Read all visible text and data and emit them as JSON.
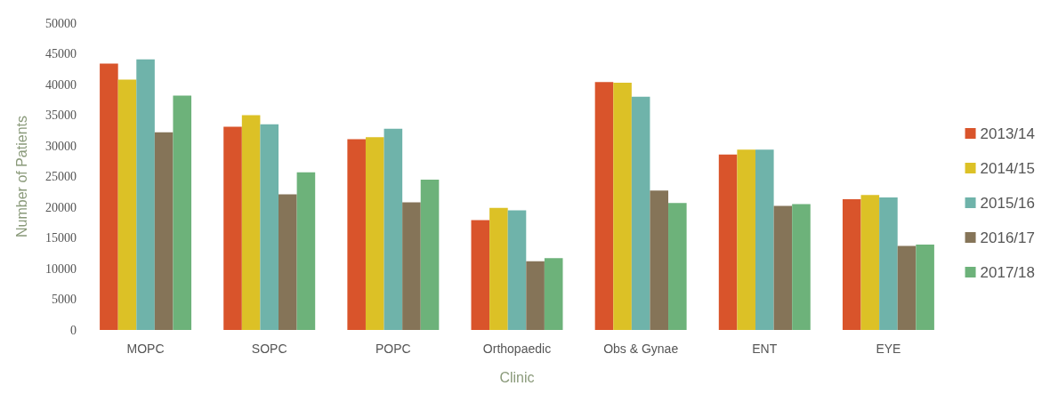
{
  "chart_data": {
    "type": "bar",
    "xlabel": "Clinic",
    "ylabel": "Number of Patients",
    "categories": [
      "MOPC",
      "SOPC",
      "POPC",
      "Orthopaedic",
      "Obs & Gynae",
      "ENT",
      "EYE"
    ],
    "series": [
      {
        "name": "2013/14",
        "color": "#d9542b",
        "values": [
          43400,
          33100,
          31100,
          17900,
          40400,
          28600,
          21300
        ]
      },
      {
        "name": "2014/15",
        "color": "#dcc126",
        "values": [
          40800,
          35000,
          31400,
          19900,
          40300,
          29400,
          22000
        ]
      },
      {
        "name": "2015/16",
        "color": "#6fb3aa",
        "values": [
          44100,
          33500,
          32800,
          19500,
          38000,
          29400,
          21600
        ]
      },
      {
        "name": "2016/17",
        "color": "#857458",
        "values": [
          32200,
          22100,
          20800,
          11200,
          22700,
          20200,
          13700
        ]
      },
      {
        "name": "2017/18",
        "color": "#6db27a",
        "values": [
          38200,
          25700,
          24500,
          11700,
          20700,
          20500,
          13900
        ]
      }
    ],
    "ylim": [
      0,
      50000
    ],
    "yticks": [
      0,
      5000,
      10000,
      15000,
      20000,
      25000,
      30000,
      35000,
      40000,
      45000,
      50000
    ],
    "grid": false,
    "legend": "right"
  }
}
